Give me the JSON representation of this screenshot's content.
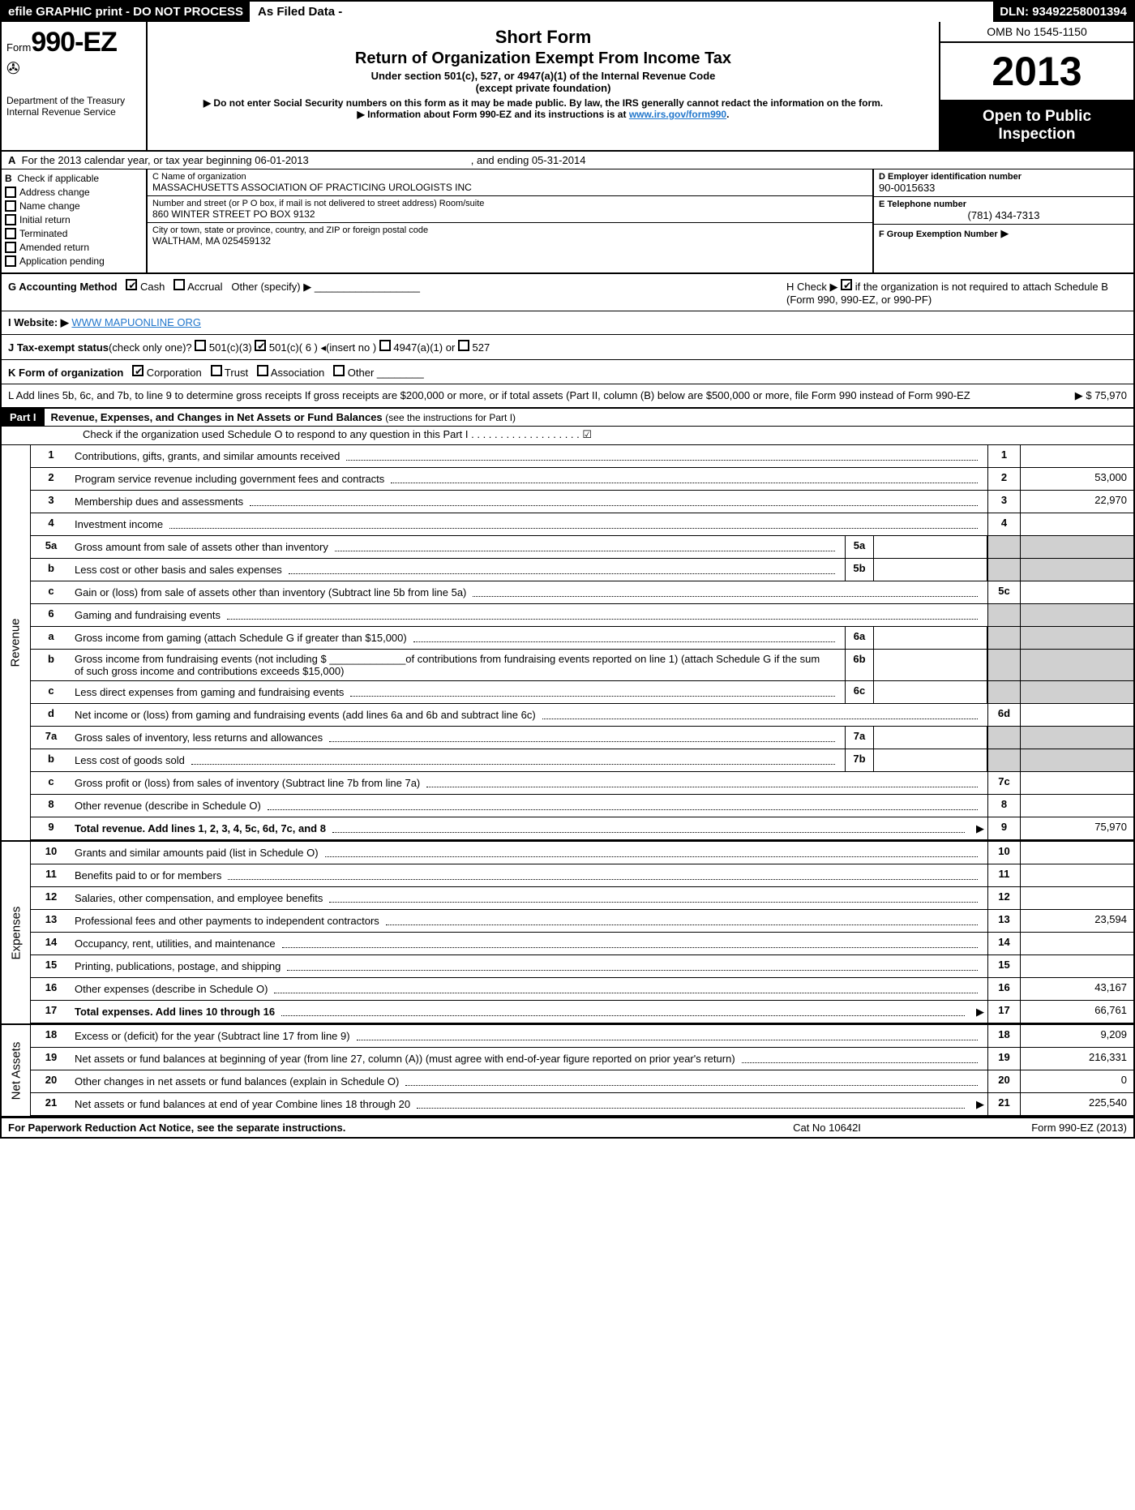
{
  "topbar": {
    "left": "efile GRAPHIC print - DO NOT PROCESS",
    "mid": "As Filed Data -",
    "right": "DLN: 93492258001394"
  },
  "header": {
    "form_prefix": "Form",
    "form_number": "990-EZ",
    "dept1": "Department of the Treasury",
    "dept2": "Internal Revenue Service",
    "title1": "Short Form",
    "title2": "Return of Organization Exempt From Income Tax",
    "sub1": "Under section 501(c), 527, or 4947(a)(1) of the Internal Revenue Code",
    "sub2": "(except private foundation)",
    "warn1": "▶ Do not enter Social Security numbers on this form as it may be made public. By law, the IRS generally cannot redact the information on the form.",
    "warn2": "▶ Information about Form 990-EZ and its instructions is at",
    "warn2_link": "www.irs.gov/form990",
    "omb": "OMB No 1545-1150",
    "year": "2013",
    "inspection1": "Open to Public",
    "inspection2": "Inspection"
  },
  "row_a": {
    "label": "A",
    "text": "For the 2013 calendar year, or tax year beginning 06-01-2013",
    "end": ", and ending 05-31-2014"
  },
  "section_b": {
    "label": "B",
    "title": "Check if applicable",
    "opts": [
      "Address change",
      "Name change",
      "Initial return",
      "Terminated",
      "Amended return",
      "Application pending"
    ]
  },
  "section_c": {
    "name_label": "C Name of organization",
    "name": "MASSACHUSETTS ASSOCIATION OF PRACTICING UROLOGISTS INC",
    "addr_label": "Number and street (or P  O  box, if mail is not delivered to street address) Room/suite",
    "addr": "860 WINTER STREET PO BOX 9132",
    "city_label": "City or town, state or province, country, and ZIP or foreign postal code",
    "city": "WALTHAM, MA  025459132"
  },
  "section_d": {
    "ein_label": "D Employer identification number",
    "ein": "90-0015633",
    "tel_label": "E Telephone number",
    "tel": "(781) 434-7313",
    "grp_label": "F Group Exemption Number",
    "grp_arrow": "▶"
  },
  "row_g": {
    "label": "G Accounting Method",
    "cash": "Cash",
    "accrual": "Accrual",
    "other": "Other (specify) ▶"
  },
  "row_h": {
    "text1": "H  Check ▶",
    "text2": "if the organization is not required to attach Schedule B (Form 990, 990-EZ, or 990-PF)"
  },
  "row_i": {
    "label": "I Website: ▶",
    "url": "WWW MAPUONLINE ORG"
  },
  "row_j": {
    "label": "J Tax-exempt status",
    "hint": "(check only one)?",
    "o1": "501(c)(3)",
    "o2": "501(c)( 6 )",
    "o2b": "◂(insert no )",
    "o3": "4947(a)(1) or",
    "o4": "527"
  },
  "row_k": {
    "label": "K Form of organization",
    "o1": "Corporation",
    "o2": "Trust",
    "o3": "Association",
    "o4": "Other"
  },
  "row_l": {
    "text": "L Add lines 5b, 6c, and 7b, to line 9 to determine gross receipts  If gross receipts are $200,000 or more, or if total assets (Part II, column (B) below are $500,000 or more, file Form 990 instead of Form 990-EZ",
    "amount": "▶ $ 75,970"
  },
  "part1": {
    "tag": "Part I",
    "title": "Revenue, Expenses, and Changes in Net Assets or Fund Balances",
    "hint": "(see the instructions for Part I)",
    "check_o": "Check if the organization used Schedule O to respond to any question in this Part I  . . . . . . . . . . . . . . . . . . .  ☑"
  },
  "revenue": [
    {
      "n": "1",
      "d": "Contributions, gifts, grants, and similar amounts received",
      "rn": "1",
      "rv": ""
    },
    {
      "n": "2",
      "d": "Program service revenue including government fees and contracts",
      "rn": "2",
      "rv": "53,000"
    },
    {
      "n": "3",
      "d": "Membership dues and assessments",
      "rn": "3",
      "rv": "22,970"
    },
    {
      "n": "4",
      "d": "Investment income",
      "rn": "4",
      "rv": ""
    },
    {
      "n": "5a",
      "d": "Gross amount from sale of assets other than inventory",
      "mn": "5a",
      "mv": ""
    },
    {
      "n": "b",
      "d": "Less  cost or other basis and sales expenses",
      "mn": "5b",
      "mv": ""
    },
    {
      "n": "c",
      "d": "Gain or (loss) from sale of assets other than inventory (Subtract line 5b from line 5a)",
      "rn": "5c",
      "rv": ""
    },
    {
      "n": "6",
      "d": "Gaming and fundraising events"
    },
    {
      "n": "a",
      "d": "Gross income from gaming (attach Schedule G if greater than $15,000)",
      "mn": "6a",
      "mv": ""
    },
    {
      "n": "b",
      "d": "Gross income from fundraising events (not including $ _____________of contributions from fundraising events reported on line 1) (attach Schedule G if the sum of such gross income and contributions exceeds $15,000)",
      "mn": "6b",
      "mv": ""
    },
    {
      "n": "c",
      "d": "Less  direct expenses from gaming and fundraising events",
      "mn": "6c",
      "mv": ""
    },
    {
      "n": "d",
      "d": "Net income or (loss) from gaming and fundraising events (add lines 6a and 6b and subtract line 6c)",
      "rn": "6d",
      "rv": ""
    },
    {
      "n": "7a",
      "d": "Gross sales of inventory, less returns and allowances",
      "mn": "7a",
      "mv": ""
    },
    {
      "n": "b",
      "d": "Less  cost of goods sold",
      "mn": "7b",
      "mv": ""
    },
    {
      "n": "c",
      "d": "Gross profit or (loss) from sales of inventory (Subtract line 7b from line 7a)",
      "rn": "7c",
      "rv": ""
    },
    {
      "n": "8",
      "d": "Other revenue (describe in Schedule O)",
      "rn": "8",
      "rv": ""
    },
    {
      "n": "9",
      "d": "Total revenue. Add lines 1, 2, 3, 4, 5c, 6d, 7c, and 8",
      "rn": "9",
      "rv": "75,970",
      "bold": true,
      "arrow": true
    }
  ],
  "expenses": [
    {
      "n": "10",
      "d": "Grants and similar amounts paid (list in Schedule O)",
      "rn": "10",
      "rv": ""
    },
    {
      "n": "11",
      "d": "Benefits paid to or for members",
      "rn": "11",
      "rv": ""
    },
    {
      "n": "12",
      "d": "Salaries, other compensation, and employee benefits",
      "rn": "12",
      "rv": ""
    },
    {
      "n": "13",
      "d": "Professional fees and other payments to independent contractors",
      "rn": "13",
      "rv": "23,594"
    },
    {
      "n": "14",
      "d": "Occupancy, rent, utilities, and maintenance",
      "rn": "14",
      "rv": ""
    },
    {
      "n": "15",
      "d": "Printing, publications, postage, and shipping",
      "rn": "15",
      "rv": ""
    },
    {
      "n": "16",
      "d": "Other expenses (describe in Schedule O)",
      "rn": "16",
      "rv": "43,167"
    },
    {
      "n": "17",
      "d": "Total expenses. Add lines 10 through 16",
      "rn": "17",
      "rv": "66,761",
      "bold": true,
      "arrow": true
    }
  ],
  "netassets": [
    {
      "n": "18",
      "d": "Excess or (deficit) for the year (Subtract line 17 from line 9)",
      "rn": "18",
      "rv": "9,209"
    },
    {
      "n": "19",
      "d": "Net assets or fund balances at beginning of year (from line 27, column (A)) (must agree with end-of-year figure reported on prior year's return)",
      "rn": "19",
      "rv": "216,331"
    },
    {
      "n": "20",
      "d": "Other changes in net assets or fund balances (explain in Schedule O)",
      "rn": "20",
      "rv": "0"
    },
    {
      "n": "21",
      "d": "Net assets or fund balances at end of year  Combine lines 18 through 20",
      "rn": "21",
      "rv": "225,540",
      "arrow": true
    }
  ],
  "footer": {
    "left": "For Paperwork Reduction Act Notice, see the separate instructions.",
    "mid": "Cat No 10642I",
    "right": "Form 990-EZ (2013)"
  }
}
